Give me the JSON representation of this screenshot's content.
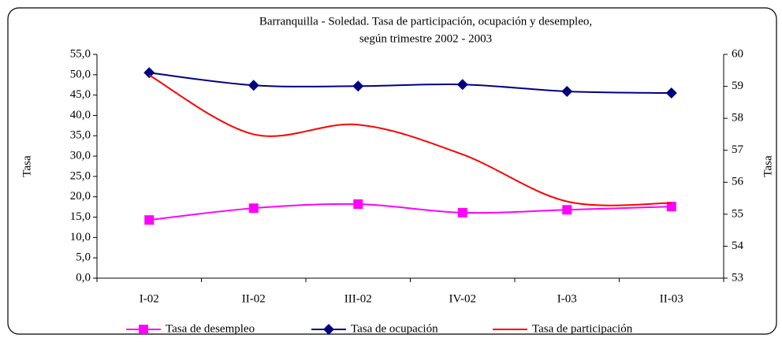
{
  "chart_data": {
    "type": "line",
    "title": [
      "Barranquilla - Soledad. Tasa de participación, ocupación y desempleo,",
      "según trimestre 2002 - 2003"
    ],
    "y_label": "Tasa",
    "y2_label": "Tasa",
    "categories": [
      "I-02",
      "II-02",
      "III-02",
      "IV-02",
      "I-03",
      "II-03"
    ],
    "series": [
      {
        "name": "Tasa de desempleo",
        "color": "#ff00ff",
        "marker": "square",
        "values": [
          14.3,
          17.2,
          18.2,
          16.1,
          16.8,
          17.6
        ]
      },
      {
        "name": "Tasa de ocupación",
        "color": "#000080",
        "marker": "diamond",
        "values": [
          50.5,
          47.4,
          47.2,
          47.6,
          45.9,
          45.5
        ]
      },
      {
        "name": "Tasa de participación",
        "color": "#ff0000",
        "axis": "y2",
        "values": [
          59.35,
          57.5,
          57.8,
          56.87,
          55.4,
          55.35
        ]
      }
    ],
    "ylim": [
      0,
      55
    ],
    "yticks": [
      {
        "value": 0,
        "label": "0,0"
      },
      {
        "value": 5,
        "label": "5,0"
      },
      {
        "value": 10,
        "label": "10,0"
      },
      {
        "value": 15,
        "label": "15,0"
      },
      {
        "value": 20,
        "label": "20,0"
      },
      {
        "value": 25,
        "label": "25,0"
      },
      {
        "value": 30,
        "label": "30,0"
      },
      {
        "value": 35,
        "label": "35,0"
      },
      {
        "value": 40,
        "label": "40,0"
      },
      {
        "value": 45,
        "label": "45,0"
      },
      {
        "value": 50,
        "label": "50,0"
      },
      {
        "value": 55,
        "label": "55,0"
      }
    ],
    "y2lim": [
      53,
      60
    ],
    "y2ticks": [
      53,
      54,
      55,
      56,
      57,
      58,
      59,
      60
    ],
    "grid": false,
    "legend": "bottom",
    "smooth": true
  }
}
